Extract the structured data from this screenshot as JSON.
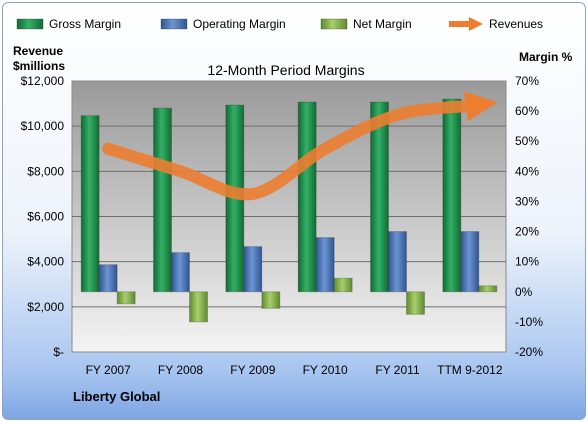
{
  "chart_data": {
    "type": "bar",
    "title": "12-Month Period Margins",
    "categories": [
      "FY 2007",
      "FY 2008",
      "FY 2009",
      "FY 2010",
      "FY 2011",
      "TTM 9-2012"
    ],
    "left_axis": {
      "label_line1": "Revenue",
      "label_line2": "$millions",
      "range": [
        0,
        12000
      ],
      "ticks": [
        0,
        2000,
        4000,
        6000,
        8000,
        10000,
        12000
      ],
      "tick_labels": [
        "$-",
        "$2,000",
        "$4,000",
        "$6,000",
        "$8,000",
        "$10,000",
        "$12,000"
      ]
    },
    "right_axis": {
      "label": "Margin %",
      "range": [
        -20,
        70
      ],
      "ticks": [
        -20,
        -10,
        0,
        10,
        20,
        30,
        40,
        50,
        60,
        70
      ],
      "tick_labels": [
        "-20%",
        "-10%",
        "0%",
        "10%",
        "20%",
        "30%",
        "40%",
        "50%",
        "60%",
        "70%"
      ]
    },
    "series": [
      {
        "name": "Gross Margin",
        "axis": "right",
        "kind": "bar",
        "color": "#1f8f4a",
        "values": [
          58.5,
          61.0,
          62.0,
          63.0,
          63.0,
          64.0
        ]
      },
      {
        "name": "Operating Margin",
        "axis": "right",
        "kind": "bar",
        "color": "#4a74b6",
        "values": [
          9.0,
          13.0,
          15.0,
          18.0,
          20.0,
          20.0
        ]
      },
      {
        "name": "Net Margin",
        "axis": "right",
        "kind": "bar",
        "color": "#86b04a",
        "values": [
          -4.0,
          -10.0,
          -5.5,
          4.5,
          -7.5,
          2.0
        ]
      },
      {
        "name": "Revenues",
        "axis": "left",
        "kind": "line",
        "color": "#ed7d31",
        "values": [
          9000,
          8000,
          7000,
          9000,
          10500,
          10900
        ]
      }
    ],
    "grid": true,
    "legend_position": "top",
    "footer": "Liberty Global"
  }
}
